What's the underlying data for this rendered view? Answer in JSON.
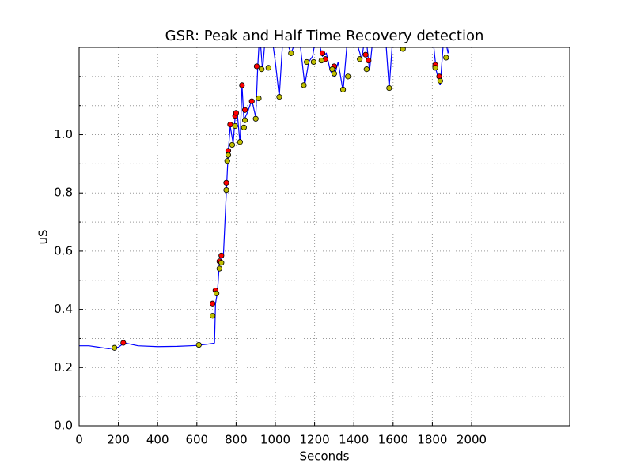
{
  "chart_data": {
    "type": "line",
    "title": "GSR: Peak and Half Time Recovery detection",
    "xlabel": "Seconds",
    "ylabel": "uS",
    "xlim": [
      0,
      2500
    ],
    "ylim": [
      0,
      1.3
    ],
    "xticks": [
      0,
      200,
      400,
      600,
      800,
      1000,
      1200,
      1400,
      1600,
      1800,
      2000
    ],
    "yticks": [
      {
        "value": 0,
        "label": "0.0"
      },
      {
        "value": 0.2,
        "label": "0.2"
      },
      {
        "value": 0.4,
        "label": "0.4"
      },
      {
        "value": 0.6,
        "label": "0.6"
      },
      {
        "value": 0.8,
        "label": "0.8"
      },
      {
        "value": 1.0,
        "label": "1.0"
      }
    ],
    "yminorticks": [
      0.1,
      0.3,
      0.5,
      0.7,
      0.9,
      1.1,
      1.2
    ],
    "grid": true,
    "series": [
      {
        "style": "line",
        "color": "#0000ff",
        "x": [
          0,
          50,
          100,
          150,
          200,
          230,
          300,
          400,
          500,
          600,
          650,
          680,
          690,
          695,
          705,
          715,
          725,
          735,
          750,
          760,
          770,
          785,
          795,
          805,
          820,
          830,
          840,
          860,
          880,
          900,
          910,
          920,
          935,
          950,
          980,
          1000,
          1020,
          1040,
          1080,
          1120,
          1150,
          1170,
          1190,
          1210,
          1240,
          1260,
          1280,
          1300,
          1320,
          1345,
          1370,
          1400,
          1440,
          1460,
          1480,
          1500,
          1560,
          1580,
          1600,
          1650,
          1700,
          1800,
          1820,
          1840,
          1860,
          1880,
          1900
        ],
        "values": [
          0.275,
          0.275,
          0.27,
          0.265,
          0.27,
          0.285,
          0.275,
          0.272,
          0.273,
          0.276,
          0.28,
          0.283,
          0.285,
          0.42,
          0.46,
          0.56,
          0.58,
          0.58,
          0.8,
          0.94,
          1.03,
          0.97,
          1.06,
          1.08,
          0.97,
          1.17,
          1.05,
          1.08,
          1.12,
          1.06,
          1.23,
          1.35,
          1.22,
          1.35,
          1.35,
          1.25,
          1.13,
          1.35,
          1.28,
          1.35,
          1.17,
          1.25,
          1.27,
          1.35,
          1.27,
          1.28,
          1.22,
          1.2,
          1.25,
          1.15,
          1.35,
          1.35,
          1.26,
          1.35,
          1.22,
          1.35,
          1.35,
          1.16,
          1.35,
          1.35,
          1.35,
          1.35,
          1.22,
          1.17,
          1.35,
          1.28,
          1.35
        ]
      },
      {
        "style": "markers",
        "color": "#ff0000",
        "x": [
          225,
          680,
          695,
          715,
          725,
          750,
          760,
          770,
          795,
          800,
          830,
          845,
          880,
          905,
          1240,
          1255,
          1300,
          1460,
          1475,
          1815,
          1835
        ],
        "values": [
          0.285,
          0.42,
          0.465,
          0.565,
          0.585,
          0.835,
          0.945,
          1.035,
          1.065,
          1.075,
          1.17,
          1.085,
          1.115,
          1.235,
          1.28,
          1.26,
          1.235,
          1.275,
          1.255,
          1.24,
          1.2
        ]
      },
      {
        "style": "markers",
        "color": "#bfbf00",
        "x": [
          180,
          610,
          680,
          700,
          715,
          725,
          750,
          755,
          760,
          780,
          795,
          820,
          840,
          845,
          900,
          915,
          930,
          965,
          1020,
          1080,
          1145,
          1160,
          1195,
          1235,
          1290,
          1300,
          1345,
          1370,
          1430,
          1465,
          1580,
          1650,
          1815,
          1840,
          1870
        ],
        "values": [
          0.268,
          0.278,
          0.378,
          0.455,
          0.54,
          0.56,
          0.81,
          0.91,
          0.93,
          0.965,
          1.03,
          0.975,
          1.025,
          1.05,
          1.055,
          1.125,
          1.225,
          1.23,
          1.13,
          1.28,
          1.17,
          1.25,
          1.25,
          1.255,
          1.225,
          1.21,
          1.155,
          1.2,
          1.26,
          1.225,
          1.16,
          1.295,
          1.23,
          1.185,
          1.265
        ]
      }
    ]
  }
}
